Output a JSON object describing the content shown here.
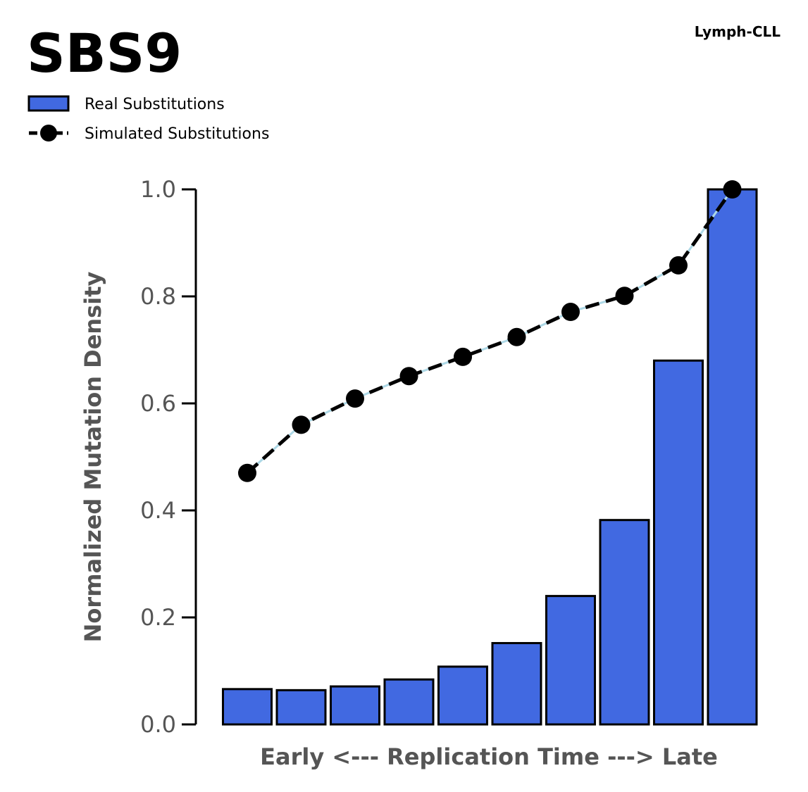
{
  "chart_data": {
    "type": "bar",
    "title": "SBS9",
    "subtitle": "Lymph-CLL",
    "xlabel": "Early <--- Replication Time ---> Late",
    "ylabel": "Normalized Mutation Density",
    "ylim": [
      0,
      1.0
    ],
    "yticks": [
      "0.0",
      "0.2",
      "0.4",
      "0.6",
      "0.8",
      "1.0"
    ],
    "grid": false,
    "legend_position": "top-left",
    "series": [
      {
        "name": "Real Substitutions",
        "kind": "bar",
        "color": "#4169E1",
        "values": [
          0.066,
          0.064,
          0.071,
          0.084,
          0.108,
          0.152,
          0.24,
          0.382,
          0.68,
          1.0
        ]
      },
      {
        "name": "Simulated Substitutions",
        "kind": "line",
        "color": "#000000",
        "values": [
          0.47,
          0.56,
          0.609,
          0.651,
          0.687,
          0.724,
          0.771,
          0.801,
          0.858,
          1.0
        ]
      }
    ]
  }
}
